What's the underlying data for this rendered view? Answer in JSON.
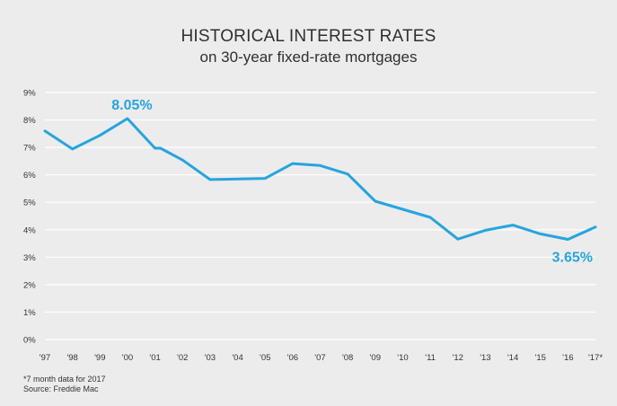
{
  "chart_data": {
    "type": "line",
    "title": "HISTORICAL INTEREST RATES",
    "subtitle": "on 30-year fixed-rate mortgages",
    "x_labels": [
      "'97",
      "'98",
      "'99",
      "'00",
      "'01",
      "'02",
      "'03",
      "'04",
      "'05",
      "'06",
      "'07",
      "'08",
      "'09",
      "'10",
      "'11",
      "'12",
      "'13",
      "'14",
      "'15",
      "'16",
      "'17*"
    ],
    "x": [
      1997,
      1998,
      1999,
      2000,
      2001,
      2001.2,
      2002,
      2003,
      2005,
      2006,
      2007,
      2008,
      2009,
      2011,
      2012,
      2013,
      2014,
      2015,
      2016,
      2017
    ],
    "y": [
      7.6,
      6.94,
      7.44,
      8.05,
      6.97,
      6.97,
      6.54,
      5.83,
      5.87,
      6.41,
      6.34,
      6.03,
      5.04,
      4.45,
      3.66,
      3.98,
      4.17,
      3.85,
      3.65,
      4.1
    ],
    "y_ticks": [
      "0%",
      "1%",
      "2%",
      "3%",
      "4%",
      "5%",
      "6%",
      "7%",
      "8%",
      "9%"
    ],
    "ylim": [
      0,
      9
    ],
    "xlim": [
      1997,
      2017
    ],
    "grid": true,
    "line_color": "#27a4de",
    "annotations": [
      {
        "text": "8.05%",
        "x": 2000,
        "y": 8.05,
        "placement": "above"
      },
      {
        "text": "3.65%",
        "x": 2016,
        "y": 3.65,
        "placement": "below"
      }
    ]
  },
  "footnote": {
    "line1": "*7 month data for 2017",
    "line2": "Source: Freddie Mac"
  }
}
